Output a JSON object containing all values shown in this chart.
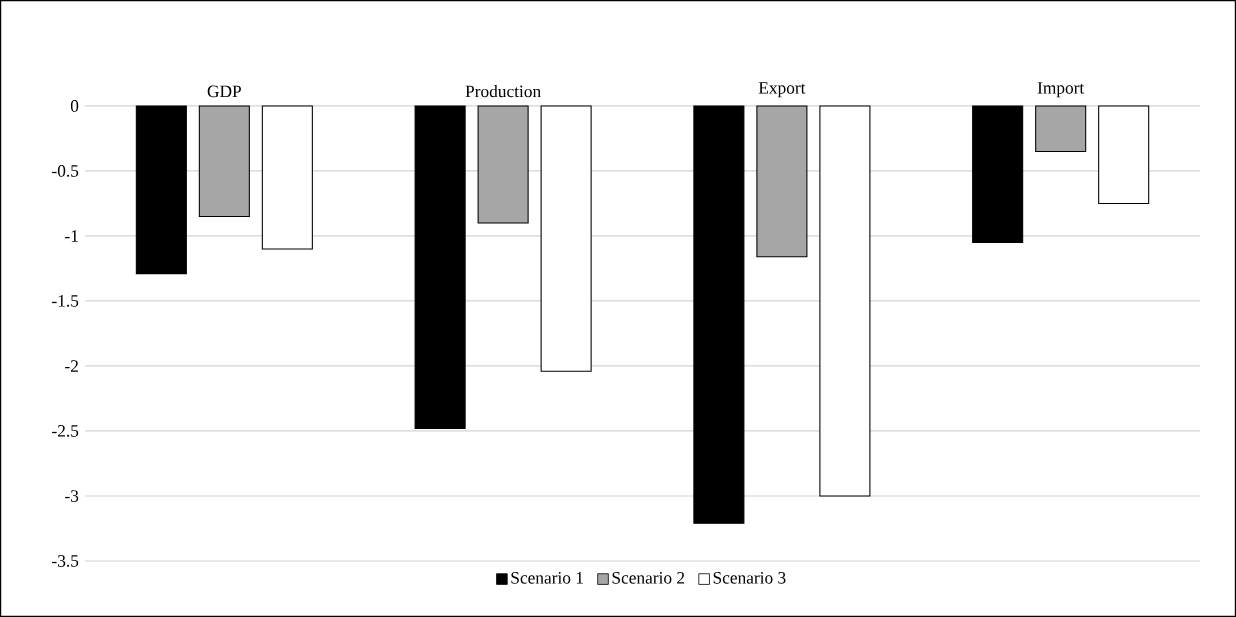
{
  "chart_data": {
    "type": "bar",
    "categories": [
      "GDP",
      "Production",
      "Export",
      "Import"
    ],
    "series": [
      {
        "name": "Scenario 1",
        "color": "#000000",
        "values": [
          -1.29,
          -2.48,
          -3.21,
          -1.05
        ]
      },
      {
        "name": "Scenario 2",
        "color": "#a6a6a6",
        "values": [
          -0.85,
          -0.9,
          -1.16,
          -0.35
        ]
      },
      {
        "name": "Scenario 3",
        "color": "#ffffff",
        "values": [
          -1.1,
          -2.04,
          -3.0,
          -0.75
        ]
      }
    ],
    "ylim": [
      -3.5,
      0
    ],
    "yticks": [
      0,
      -0.5,
      -1,
      -1.5,
      -2,
      -2.5,
      -3,
      -3.5
    ],
    "grid": "y",
    "legend": "bottom"
  }
}
